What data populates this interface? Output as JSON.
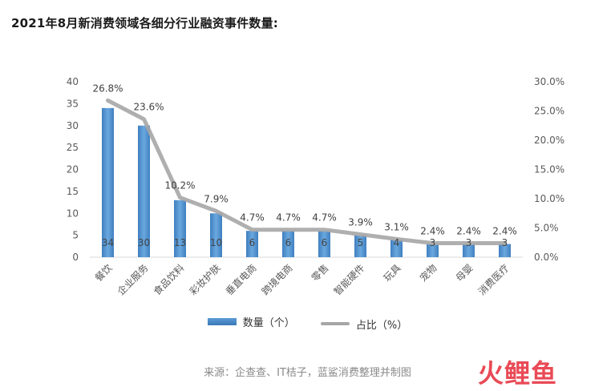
{
  "title": "2021年8月新消费领域各细分行业融资事件数量:",
  "source": "来源：企查查、IT桔子，蓝鲨消费整理并制图",
  "logo": "火鲤鱼",
  "colors": {
    "bar": "#5b9bd5",
    "line": "#a6a6a6",
    "grid": "#e6e6e6",
    "axis_text": "#595959"
  },
  "chart_data": {
    "type": "bar",
    "categories": [
      "餐饮",
      "企业服务",
      "食品饮料",
      "彩妆护肤",
      "垂直电商",
      "跨境电商",
      "零售",
      "智能硬件",
      "玩具",
      "宠物",
      "母婴",
      "消费医疗"
    ],
    "series": [
      {
        "name": "数量（个）",
        "type": "bar",
        "axis": "left",
        "values": [
          34,
          30,
          13,
          10,
          6,
          6,
          6,
          5,
          4,
          3,
          3,
          3
        ]
      },
      {
        "name": "占比（%）",
        "type": "line",
        "axis": "right",
        "values": [
          26.8,
          23.6,
          10.2,
          7.9,
          4.7,
          4.7,
          4.7,
          3.9,
          3.1,
          2.4,
          2.4,
          2.4
        ]
      }
    ],
    "bar_labels": [
      "34",
      "30",
      "13",
      "10",
      "6",
      "6",
      "6",
      "5",
      "4",
      "3",
      "3",
      "3"
    ],
    "line_labels": [
      "26.8%",
      "23.6%",
      "10.2%",
      "7.9%",
      "4.7%",
      "4.7%",
      "4.7%",
      "3.9%",
      "3.1%",
      "2.4%",
      "2.4%",
      "2.4%"
    ],
    "ylim_left": [
      0,
      40
    ],
    "yticks_left": [
      "0",
      "5",
      "10",
      "15",
      "20",
      "25",
      "30",
      "35",
      "40"
    ],
    "ylim_right": [
      0,
      30
    ],
    "yticks_right": [
      "0.0%",
      "5.0%",
      "10.0%",
      "15.0%",
      "20.0%",
      "25.0%",
      "30.0%"
    ],
    "grid": false,
    "legend_position": "bottom"
  }
}
